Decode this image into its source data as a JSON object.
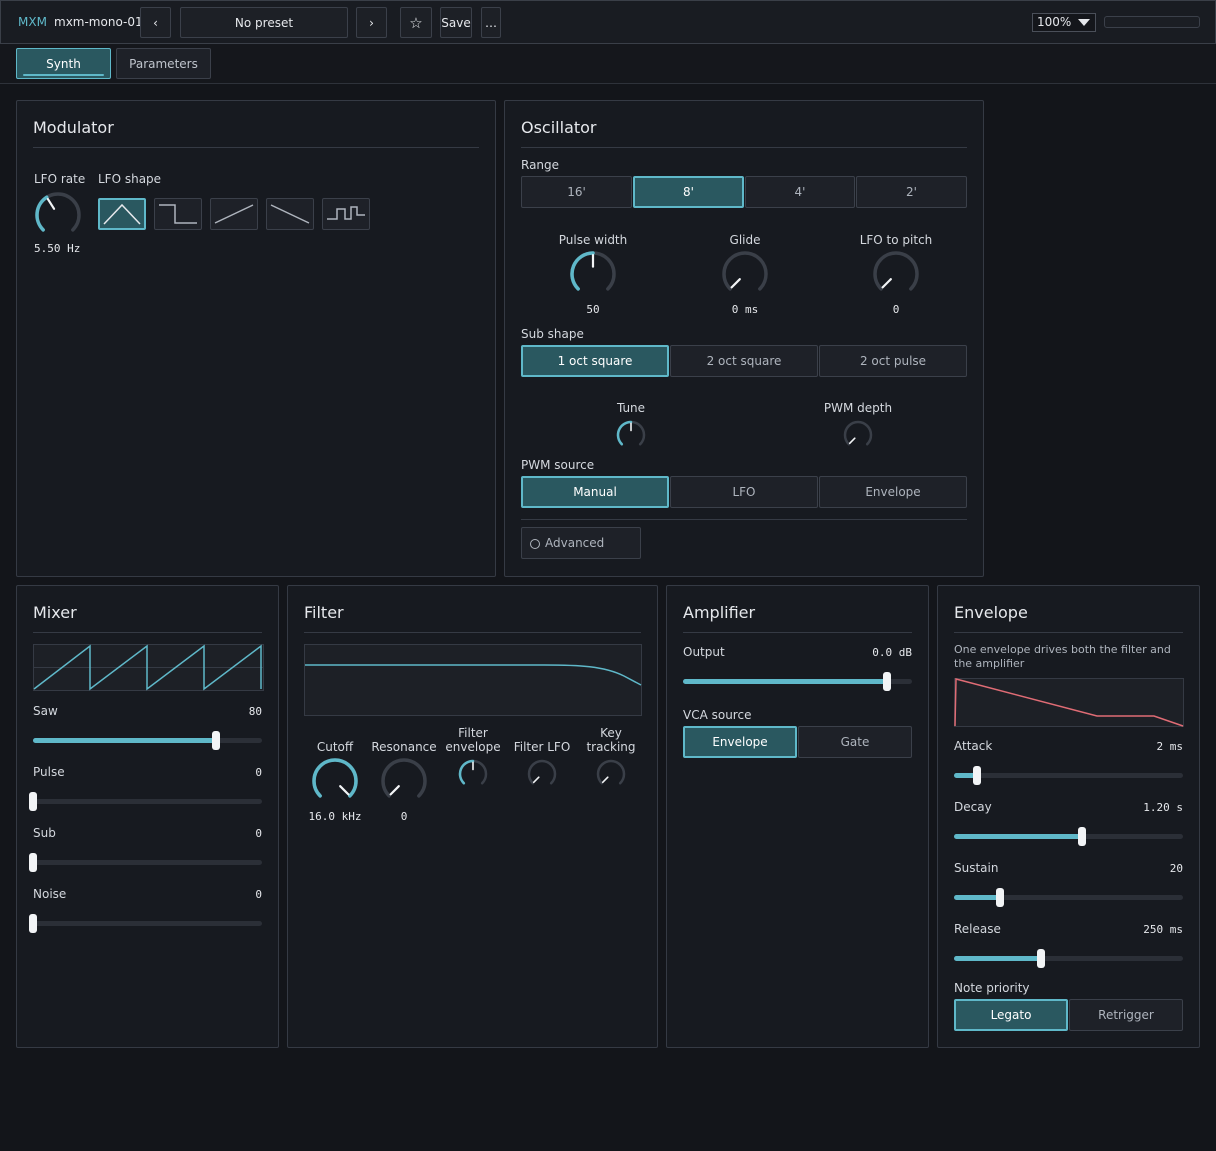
{
  "topbar": {
    "brand": "MXM",
    "device_name": "mxm-mono-01",
    "prev_label": "‹",
    "preset_name": "No preset",
    "next_label": "›",
    "favorite_label": "☆",
    "save_label": "Save",
    "more_label": "…",
    "zoom": "100%",
    "meter_level": 0
  },
  "tabs": [
    {
      "label": "Synth",
      "active": true
    },
    {
      "label": "Parameters",
      "active": false
    }
  ],
  "modulator": {
    "title": "Modulator",
    "lfo_rate_label": "LFO rate",
    "lfo_rate_value": "5.50 Hz",
    "lfo_rate_level": 0.38,
    "lfo_shape_label": "LFO shape",
    "shapes": [
      "triangle-wave-icon",
      "square-wave-icon",
      "saw-up-wave-icon",
      "saw-down-wave-icon",
      "sample-hold-wave-icon"
    ],
    "selected_shape": 0
  },
  "oscillator": {
    "title": "Oscillator",
    "range_label": "Range",
    "range_options": [
      "16'",
      "8'",
      "4'",
      "2'"
    ],
    "range_selected": 1,
    "pulse_width_label": "Pulse width",
    "pulse_width_value": "50",
    "pulse_width_level": 0.5,
    "glide_label": "Glide",
    "glide_value": "0 ms",
    "glide_level": 0,
    "lfo_pitch_label": "LFO to pitch",
    "lfo_pitch_value": "0",
    "lfo_pitch_level": 0,
    "sub_shape_label": "Sub shape",
    "sub_shape_options": [
      "1 oct square",
      "2 oct square",
      "2 oct pulse"
    ],
    "sub_shape_selected": 0,
    "tune_label": "Tune",
    "tune_level": 0.5,
    "pwm_depth_label": "PWM depth",
    "pwm_depth_level": 0,
    "pwm_source_label": "PWM source",
    "pwm_source_options": [
      "Manual",
      "LFO",
      "Envelope"
    ],
    "pwm_source_selected": 0,
    "advanced_label": "Advanced"
  },
  "mixer": {
    "title": "Mixer",
    "channels": [
      {
        "label": "Saw",
        "value": "80",
        "level": 0.8
      },
      {
        "label": "Pulse",
        "value": "0",
        "level": 0
      },
      {
        "label": "Sub",
        "value": "0",
        "level": 0
      },
      {
        "label": "Noise",
        "value": "0",
        "level": 0
      }
    ]
  },
  "filter": {
    "title": "Filter",
    "cutoff_label": "Cutoff",
    "cutoff_value": "16.0 kHz",
    "cutoff_level": 1,
    "resonance_label": "Resonance",
    "resonance_value": "0",
    "resonance_level": 0,
    "filter_env_label": "Filter envelope",
    "filter_env_level": 0.5,
    "filter_lfo_label": "Filter LFO",
    "filter_lfo_level": 0,
    "key_tracking_label": "Key tracking",
    "key_tracking_level": 0
  },
  "amplifier": {
    "title": "Amplifier",
    "output_label": "Output",
    "output_value": "0.0 dB",
    "output_level": 0.89,
    "vca_source_label": "VCA source",
    "vca_options": [
      "Envelope",
      "Gate"
    ],
    "vca_selected": 0
  },
  "envelope": {
    "title": "Envelope",
    "description": "One envelope drives both the filter and the amplifier",
    "params": [
      {
        "label": "Attack",
        "value": "2 ms",
        "level": 0.1
      },
      {
        "label": "Decay",
        "value": "1.20 s",
        "level": 0.56
      },
      {
        "label": "Sustain",
        "value": "20",
        "level": 0.2
      },
      {
        "label": "Release",
        "value": "250 ms",
        "level": 0.38
      }
    ],
    "note_priority_label": "Note priority",
    "note_priority_options": [
      "Legato",
      "Retrigger"
    ],
    "note_priority_selected": 0
  },
  "colors": {
    "accent": "#5fb8c9",
    "envelope_curve": "#e06c75",
    "selected_bg": "#2a5860"
  }
}
